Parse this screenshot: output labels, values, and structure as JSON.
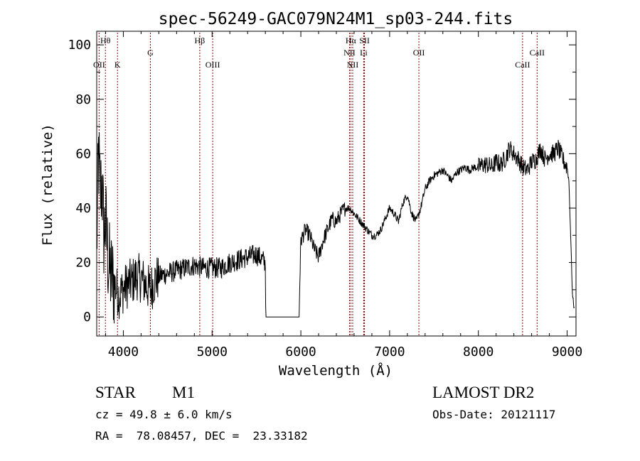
{
  "chart_data": {
    "type": "line",
    "title": "spec-56249-GAC079N24M1_sp03-244.fits",
    "xlabel": "Wavelength (Å)",
    "ylabel": "Flux (relative)",
    "xlim": [
      3700,
      9100
    ],
    "ylim": [
      -7,
      105
    ],
    "x_ticks": [
      4000,
      5000,
      6000,
      7000,
      8000,
      9000
    ],
    "y_ticks": [
      0,
      20,
      40,
      60,
      80,
      100
    ],
    "grid": false,
    "line_color": "#000000",
    "marker_color": "#8b0000",
    "spectrum_anchors": {
      "x": [
        3700,
        3720,
        3740,
        3760,
        3780,
        3800,
        3830,
        3860,
        3900,
        3950,
        4000,
        4050,
        4100,
        4150,
        4200,
        4250,
        4300,
        4350,
        4400,
        4500,
        4600,
        4700,
        4800,
        4900,
        5000,
        5100,
        5200,
        5300,
        5400,
        5500,
        5600,
        5605,
        5980,
        5990,
        6000,
        6050,
        6100,
        6150,
        6200,
        6250,
        6300,
        6350,
        6400,
        6450,
        6500,
        6550,
        6600,
        6650,
        6700,
        6750,
        6800,
        6850,
        6900,
        6950,
        7000,
        7050,
        7100,
        7150,
        7200,
        7250,
        7300,
        7350,
        7400,
        7450,
        7500,
        7550,
        7600,
        7650,
        7700,
        7750,
        7800,
        7850,
        7900,
        7950,
        8000,
        8050,
        8100,
        8150,
        8200,
        8250,
        8300,
        8350,
        8400,
        8450,
        8500,
        8550,
        8600,
        8650,
        8700,
        8750,
        8800,
        8850,
        8900,
        8950,
        9000,
        9020,
        9040,
        9060,
        9080
      ],
      "y": [
        25,
        60,
        45,
        50,
        30,
        35,
        20,
        15,
        12,
        8,
        10,
        12,
        13,
        15,
        14,
        12,
        10,
        13,
        15,
        16,
        17,
        18,
        19,
        18,
        18,
        18,
        20,
        21,
        22,
        23,
        20,
        0,
        0,
        15,
        28,
        32,
        30,
        25,
        22,
        28,
        32,
        36,
        35,
        38,
        40,
        40,
        38,
        36,
        34,
        32,
        30,
        30,
        32,
        36,
        40,
        38,
        35,
        42,
        45,
        38,
        35,
        40,
        47,
        50,
        52,
        53,
        54,
        52,
        50,
        53,
        54,
        55,
        54,
        55,
        55,
        56,
        56,
        55,
        57,
        56,
        58,
        62,
        60,
        58,
        55,
        54,
        57,
        58,
        62,
        58,
        60,
        60,
        62,
        58,
        55,
        50,
        30,
        8,
        3
      ]
    },
    "line_markers": [
      {
        "label": "Hθ",
        "x": 3798,
        "row": 0
      },
      {
        "label": "OII",
        "x": 3727,
        "row": 2
      },
      {
        "label": "K",
        "x": 3934,
        "row": 2
      },
      {
        "label": "G",
        "x": 4305,
        "row": 1
      },
      {
        "label": "Hβ",
        "x": 4861,
        "row": 0
      },
      {
        "label": "OIII",
        "x": 5007,
        "row": 2
      },
      {
        "label": "Hα",
        "x": 6563,
        "row": 0
      },
      {
        "label": "NII",
        "x": 6548,
        "row": 1
      },
      {
        "label": "NII",
        "x": 6584,
        "row": 2
      },
      {
        "label": "SII",
        "x": 6717,
        "row": 0
      },
      {
        "label": "Li",
        "x": 6708,
        "row": 1
      },
      {
        "label": "OII",
        "x": 7330,
        "row": 1
      },
      {
        "label": "CaII",
        "x": 8498,
        "row": 2
      },
      {
        "label": "CaII",
        "x": 8662,
        "row": 1
      }
    ]
  },
  "info": {
    "object_class": "STAR",
    "subclass": "M1",
    "survey": "LAMOST DR2",
    "cz": "cz = 49.8 ± 6.0 km/s",
    "obs_date": "Obs-Date: 20121117",
    "coords": "RA =  78.08457, DEC =  23.33182"
  }
}
